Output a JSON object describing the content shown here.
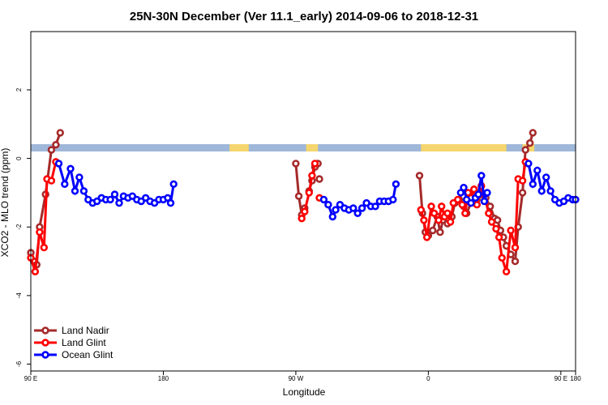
{
  "chart_data": {
    "type": "line",
    "title": "25N-30N December (Ver 11.1_early)   2014-09-06 to 2018-12-31",
    "xlabel": "Longitude",
    "ylabel": "XCO2 - MLO trend (ppm)",
    "xlim": [
      90,
      460
    ],
    "ylim": [
      -6.2,
      3.7
    ],
    "x_ticks": [
      {
        "value": 90,
        "label": "90 E"
      },
      {
        "value": 180,
        "label": "180"
      },
      {
        "value": 270,
        "label": "90 W"
      },
      {
        "value": 360,
        "label": "0"
      },
      {
        "value": 450,
        "label": "90 E"
      },
      {
        "value": 540,
        "label": "180"
      }
    ],
    "y_ticks": [
      {
        "value": -6,
        "label": "-6"
      },
      {
        "value": -4,
        "label": "-4"
      },
      {
        "value": -2,
        "label": "-2"
      },
      {
        "value": 0,
        "label": "0"
      },
      {
        "value": 2,
        "label": "2"
      }
    ],
    "grid": false,
    "legend_position": "bottom-left",
    "colors": {
      "land_nadir": "#a52a2a",
      "land_glint": "#ff0000",
      "ocean_glint": "#0000ff",
      "ocean_band": "#9fb7d9",
      "land_band": "#f5d66e"
    },
    "series": [
      {
        "name": "Land Nadir",
        "color": "#a52a2a",
        "segments": [
          [
            [
              90,
              -2.75
            ],
            [
              92,
              -3.0
            ],
            [
              94,
              -3.1
            ],
            [
              96,
              -2.0
            ],
            [
              100,
              -1.05
            ],
            [
              104,
              0.25
            ],
            [
              107,
              0.4
            ],
            [
              110,
              0.75
            ]
          ],
          [
            [
              270,
              -0.15
            ],
            [
              272,
              -1.1
            ],
            [
              274,
              -1.65
            ],
            [
              276,
              -1.45
            ]
          ],
          [
            [
              279,
              -0.95
            ],
            [
              281,
              -0.65
            ],
            [
              283,
              -0.25
            ],
            [
              285,
              -0.15
            ]
          ],
          [
            [
              286,
              -0.6
            ]
          ],
          [
            [
              354,
              -0.5
            ],
            [
              356,
              -1.6
            ],
            [
              358,
              -2.15
            ],
            [
              360,
              -2.25
            ],
            [
              363,
              -2.1
            ],
            [
              366,
              -1.7
            ],
            [
              368,
              -2.15
            ],
            [
              370,
              -1.8
            ],
            [
              373,
              -1.9
            ],
            [
              376,
              -1.7
            ],
            [
              378,
              -1.3
            ],
            [
              381,
              -1.2
            ],
            [
              384,
              -1.4
            ],
            [
              386,
              -1.6
            ],
            [
              389,
              -1.3
            ],
            [
              393,
              -1.2
            ],
            [
              396,
              -1.05
            ],
            [
              399,
              -1.15
            ],
            [
              402,
              -1.4
            ],
            [
              405,
              -1.75
            ],
            [
              407,
              -1.8
            ],
            [
              409,
              -2.1
            ],
            [
              411,
              -2.3
            ],
            [
              413,
              -2.55
            ],
            [
              416,
              -2.8
            ],
            [
              419,
              -3.0
            ],
            [
              421,
              -2.0
            ],
            [
              424,
              -1.0
            ],
            [
              426,
              0.25
            ],
            [
              429,
              0.45
            ],
            [
              431,
              0.75
            ]
          ]
        ]
      },
      {
        "name": "Land Glint",
        "color": "#ff0000",
        "segments": [
          [
            [
              90,
              -2.9
            ],
            [
              93,
              -3.3
            ],
            [
              96,
              -2.15
            ],
            [
              99,
              -2.6
            ],
            [
              101,
              -0.6
            ],
            [
              104,
              -0.65
            ],
            [
              107,
              -0.1
            ]
          ],
          [
            [
              274,
              -1.75
            ],
            [
              276,
              -1.55
            ],
            [
              279,
              -1.0
            ],
            [
              281,
              -0.5
            ],
            [
              283,
              -0.15
            ]
          ],
          [
            [
              286,
              -1.15
            ]
          ],
          [
            [
              355,
              -1.5
            ],
            [
              357,
              -1.8
            ],
            [
              359,
              -2.3
            ],
            [
              362,
              -1.4
            ],
            [
              364,
              -1.6
            ],
            [
              367,
              -1.8
            ],
            [
              369,
              -1.4
            ],
            [
              371,
              -1.7
            ],
            [
              373,
              -1.6
            ],
            [
              375,
              -1.85
            ],
            [
              377,
              -1.3
            ],
            [
              380,
              -1.2
            ],
            [
              383,
              -1.35
            ],
            [
              385,
              -1.6
            ],
            [
              387,
              -1.0
            ],
            [
              389,
              -1.15
            ],
            [
              391,
              -0.9
            ],
            [
              393,
              -1.35
            ],
            [
              396,
              -0.8
            ],
            [
              398,
              -1.05
            ],
            [
              401,
              -1.6
            ],
            [
              403,
              -1.85
            ],
            [
              406,
              -2.05
            ],
            [
              408,
              -2.3
            ],
            [
              410,
              -2.9
            ],
            [
              413,
              -3.3
            ],
            [
              416,
              -2.1
            ],
            [
              419,
              -2.6
            ],
            [
              421,
              -0.6
            ],
            [
              424,
              -0.65
            ],
            [
              426,
              -0.1
            ]
          ]
        ]
      },
      {
        "name": "Ocean Glint",
        "color": "#0000ff",
        "segments": [
          [
            [
              109,
              -0.15
            ],
            [
              113,
              -0.75
            ],
            [
              117,
              -0.3
            ],
            [
              120,
              -0.95
            ],
            [
              123,
              -0.55
            ],
            [
              126,
              -0.95
            ],
            [
              129,
              -1.2
            ],
            [
              132,
              -1.3
            ],
            [
              135,
              -1.25
            ],
            [
              138,
              -1.15
            ],
            [
              141,
              -1.2
            ],
            [
              144,
              -1.2
            ],
            [
              147,
              -1.05
            ],
            [
              150,
              -1.3
            ],
            [
              153,
              -1.1
            ],
            [
              156,
              -1.15
            ],
            [
              159,
              -1.1
            ],
            [
              162,
              -1.2
            ],
            [
              165,
              -1.25
            ],
            [
              168,
              -1.15
            ],
            [
              171,
              -1.25
            ],
            [
              174,
              -1.3
            ],
            [
              177,
              -1.2
            ],
            [
              180,
              -1.2
            ],
            [
              183,
              -1.15
            ],
            [
              185,
              -1.3
            ],
            [
              187,
              -0.75
            ]
          ],
          [
            [
              289,
              -1.2
            ],
            [
              292,
              -1.35
            ],
            [
              295,
              -1.7
            ],
            [
              297,
              -1.5
            ],
            [
              300,
              -1.35
            ],
            [
              303,
              -1.45
            ],
            [
              306,
              -1.5
            ],
            [
              309,
              -1.45
            ],
            [
              312,
              -1.6
            ],
            [
              315,
              -1.45
            ],
            [
              318,
              -1.3
            ],
            [
              321,
              -1.4
            ],
            [
              324,
              -1.4
            ],
            [
              327,
              -1.25
            ],
            [
              330,
              -1.25
            ],
            [
              333,
              -1.25
            ],
            [
              336,
              -1.2
            ],
            [
              338,
              -0.75
            ]
          ],
          [
            [
              382,
              -1.0
            ],
            [
              384,
              -0.85
            ],
            [
              386,
              -1.2
            ],
            [
              389,
              -1.3
            ],
            [
              392,
              -1.15
            ],
            [
              394,
              -1.05
            ],
            [
              396,
              -0.5
            ],
            [
              398,
              -1.25
            ],
            [
              400,
              -1.0
            ]
          ],
          [
            [
              428,
              -0.15
            ],
            [
              431,
              -0.75
            ],
            [
              434,
              -0.35
            ],
            [
              437,
              -0.95
            ],
            [
              440,
              -0.55
            ],
            [
              443,
              -0.95
            ],
            [
              446,
              -1.2
            ],
            [
              449,
              -1.3
            ],
            [
              452,
              -1.25
            ],
            [
              455,
              -1.15
            ],
            [
              458,
              -1.2
            ],
            [
              460,
              -1.2
            ]
          ]
        ]
      }
    ],
    "land_ranges": [
      [
        225,
        238
      ],
      [
        277,
        285
      ],
      [
        355,
        413
      ],
      [
        424,
        432
      ]
    ]
  }
}
